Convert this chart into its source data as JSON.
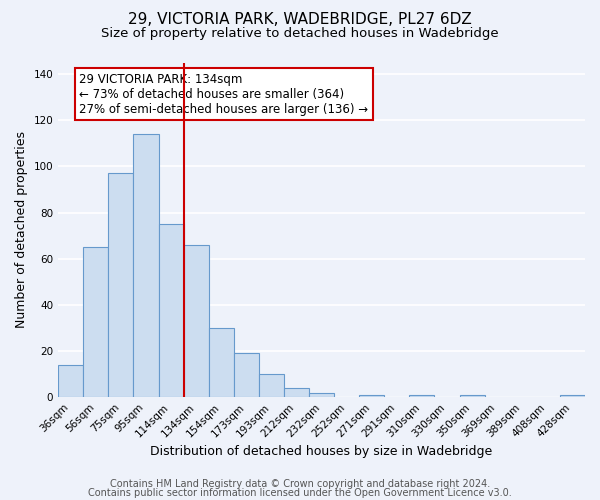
{
  "title": "29, VICTORIA PARK, WADEBRIDGE, PL27 6DZ",
  "subtitle": "Size of property relative to detached houses in Wadebridge",
  "xlabel": "Distribution of detached houses by size in Wadebridge",
  "ylabel": "Number of detached properties",
  "bin_labels": [
    "36sqm",
    "56sqm",
    "75sqm",
    "95sqm",
    "114sqm",
    "134sqm",
    "154sqm",
    "173sqm",
    "193sqm",
    "212sqm",
    "232sqm",
    "252sqm",
    "271sqm",
    "291sqm",
    "310sqm",
    "330sqm",
    "350sqm",
    "369sqm",
    "389sqm",
    "408sqm",
    "428sqm"
  ],
  "bar_heights": [
    14,
    65,
    97,
    114,
    75,
    66,
    30,
    19,
    10,
    4,
    2,
    0,
    1,
    0,
    1,
    0,
    1,
    0,
    0,
    0,
    1
  ],
  "bar_color": "#ccddf0",
  "bar_edge_color": "#6699cc",
  "vline_x": 4.5,
  "vline_color": "#cc0000",
  "ylim": [
    0,
    145
  ],
  "yticks": [
    0,
    20,
    40,
    60,
    80,
    100,
    120,
    140
  ],
  "annotation_text": "29 VICTORIA PARK: 134sqm\n← 73% of detached houses are smaller (364)\n27% of semi-detached houses are larger (136) →",
  "annotation_box_facecolor": "#ffffff",
  "annotation_box_edgecolor": "#cc0000",
  "footnote1": "Contains HM Land Registry data © Crown copyright and database right 2024.",
  "footnote2": "Contains public sector information licensed under the Open Government Licence v3.0.",
  "background_color": "#eef2fa",
  "grid_color": "#ffffff",
  "title_fontsize": 11,
  "subtitle_fontsize": 9.5,
  "xlabel_fontsize": 9,
  "ylabel_fontsize": 9,
  "tick_fontsize": 7.5,
  "annotation_fontsize": 8.5,
  "footnote_fontsize": 7
}
